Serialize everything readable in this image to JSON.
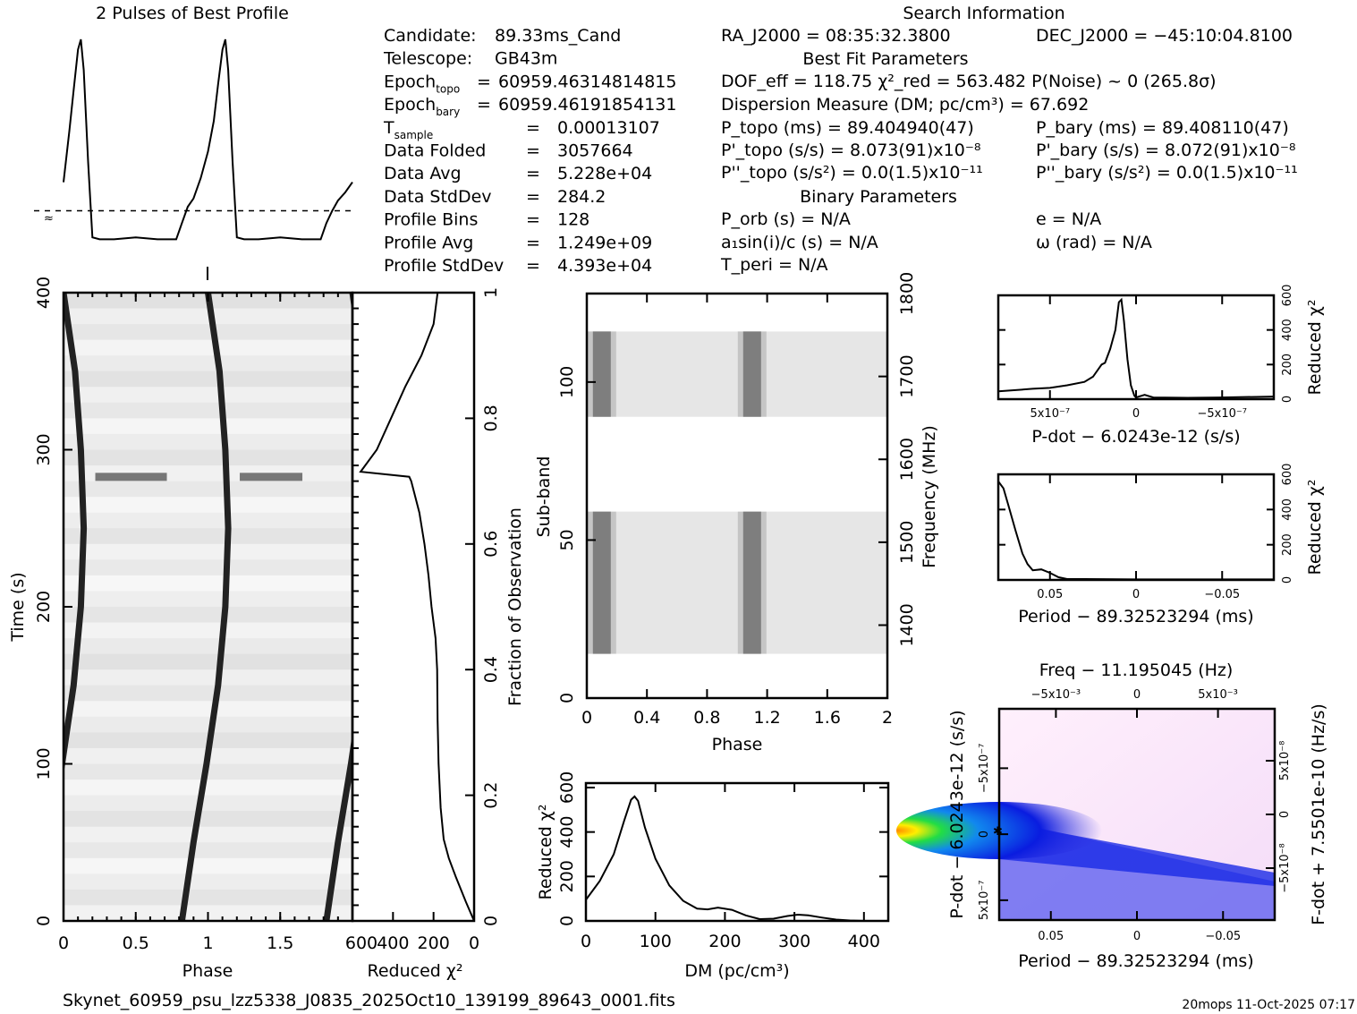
{
  "header": {
    "profile_title": "2 Pulses of Best Profile",
    "search_title": "Search Information",
    "best_fit_title": "Best Fit Parameters",
    "binary_title": "Binary Parameters"
  },
  "info_left": [
    {
      "label": "Candidate:",
      "sub": "",
      "eq": "",
      "value": "89.33ms_Cand"
    },
    {
      "label": "Telescope:",
      "sub": "",
      "eq": "",
      "value": "GB43m"
    },
    {
      "label": "Epoch",
      "sub": "topo",
      "eq": "=",
      "value": "60959.46314814815"
    },
    {
      "label": "Epoch",
      "sub": "bary",
      "eq": "=",
      "value": "60959.46191854131"
    },
    {
      "label": "T",
      "sub": "sample",
      "eq": "=",
      "value": "0.00013107"
    },
    {
      "label": "Data Folded",
      "sub": "",
      "eq": "=",
      "value": "3057664"
    },
    {
      "label": "Data Avg",
      "sub": "",
      "eq": "=",
      "value": "5.228e+04"
    },
    {
      "label": "Data StdDev",
      "sub": "",
      "eq": "=",
      "value": "284.2"
    },
    {
      "label": "Profile Bins",
      "sub": "",
      "eq": "=",
      "value": "128"
    },
    {
      "label": "Profile Avg",
      "sub": "",
      "eq": "=",
      "value": "1.249e+09"
    },
    {
      "label": "Profile StdDev",
      "sub": "",
      "eq": "=",
      "value": "4.393e+04"
    }
  ],
  "search": {
    "ra": "RA_J2000 = 08:35:32.3800",
    "dec": "DEC_J2000 = −45:10:04.8100",
    "dof": "DOF_eff = 118.75  χ²_red = 563.482  P(Noise) ~ 0   (265.8σ)",
    "dm": "Dispersion Measure (DM; pc/cm³) = 67.692",
    "p_topo": "P_topo (ms) =  89.404940(47)",
    "p_bary": "P_bary (ms) =  89.408110(47)",
    "pd_topo": "P'_topo (s/s) =  8.073(91)x10⁻⁸",
    "pd_bary": "P'_bary (s/s) =  8.072(91)x10⁻⁸",
    "pdd_topo": "P''_topo (s/s²) = 0.0(1.5)x10⁻¹¹",
    "pdd_bary": "P''_bary (s/s²) = 0.0(1.5)x10⁻¹¹",
    "p_orb": "P_orb (s) = N/A",
    "ecc": "e = N/A",
    "a1sini": "a₁sin(i)/c (s) = N/A",
    "omega": "ω (rad) = N/A",
    "t_peri": "T_peri = N/A"
  },
  "footer": {
    "filename": "Skynet_60959_psu_lzz5338_J0835_2025Oct10_139199_89643_0001.fits",
    "stamp": "20mops 11-Oct-2025 07:17"
  },
  "chart_data": [
    {
      "id": "profile",
      "type": "line",
      "title": "2 Pulses of Best Profile",
      "xlabel": "",
      "ylabel": "",
      "x_range": [
        0,
        2
      ],
      "note": "two pulses; peak near phase 0.12 and 1.12; baseline from ~0.2 to ~0.8; dashed line marks mean level",
      "x": [
        0.0,
        0.04,
        0.07,
        0.1,
        0.12,
        0.14,
        0.17,
        0.2,
        0.25,
        0.35,
        0.5,
        0.65,
        0.78,
        0.82,
        0.86,
        0.9,
        0.95,
        1.0,
        1.04,
        1.07,
        1.1,
        1.12,
        1.14,
        1.17,
        1.2,
        1.25,
        1.35,
        1.5,
        1.65,
        1.78,
        1.82,
        1.86,
        1.9,
        1.95,
        2.0
      ],
      "y": [
        0.3,
        0.55,
        0.75,
        0.95,
        1.0,
        0.85,
        0.4,
        0.03,
        0.02,
        0.02,
        0.03,
        0.02,
        0.02,
        0.1,
        0.18,
        0.22,
        0.32,
        0.45,
        0.6,
        0.78,
        0.95,
        1.0,
        0.85,
        0.4,
        0.03,
        0.02,
        0.02,
        0.03,
        0.02,
        0.02,
        0.1,
        0.16,
        0.21,
        0.25,
        0.3
      ],
      "mean_level": 0.16
    },
    {
      "id": "time-phase",
      "type": "heatmap",
      "xlabel": "Phase",
      "ylabel": "Time (s)",
      "x_range": [
        0,
        2
      ],
      "y_range": [
        0,
        400
      ],
      "x_ticks": [
        "0",
        "0.5",
        "1",
        "1.5"
      ],
      "y_ticks": [
        "0",
        "100",
        "200",
        "300",
        "400"
      ],
      "pulse_track_phase_at_time": [
        [
          0,
          0.82
        ],
        [
          50,
          0.9
        ],
        [
          100,
          0.99
        ],
        [
          150,
          1.07
        ],
        [
          200,
          1.12
        ],
        [
          250,
          1.14
        ],
        [
          300,
          1.12
        ],
        [
          350,
          1.08
        ],
        [
          400,
          1.0
        ]
      ],
      "rfi_row_time": 283
    },
    {
      "id": "time-chi2",
      "type": "line",
      "xlabel": "Reduced χ²",
      "ylabel": "Fraction of Observation",
      "x_range": [
        600,
        0
      ],
      "y_range": [
        0,
        1
      ],
      "x_ticks": [
        "600",
        "400",
        "200",
        "0"
      ],
      "y_ticks": [
        "0",
        "0.2",
        "0.4",
        "0.6",
        "0.8",
        "1"
      ],
      "frac": [
        0.0,
        0.03,
        0.07,
        0.1,
        0.13,
        0.18,
        0.25,
        0.32,
        0.4,
        0.45,
        0.5,
        0.55,
        0.6,
        0.65,
        0.7,
        0.707,
        0.715,
        0.75,
        0.8,
        0.85,
        0.9,
        0.95,
        1.0
      ],
      "chi2": [
        0,
        40,
        90,
        125,
        150,
        165,
        175,
        180,
        182,
        190,
        210,
        225,
        245,
        270,
        310,
        320,
        560,
        480,
        410,
        340,
        260,
        200,
        180
      ]
    },
    {
      "id": "subband-phase",
      "type": "heatmap",
      "xlabel": "Phase",
      "ylabel": "Sub-band",
      "y2label": "Frequency (MHz)",
      "x_range": [
        0,
        2
      ],
      "y_range": [
        0,
        128
      ],
      "y2_range": [
        1300,
        1800
      ],
      "x_ticks": [
        "0",
        "0.4",
        "0.8",
        "1.2",
        "1.6",
        "2"
      ],
      "y_ticks": [
        "0",
        "50",
        "100"
      ],
      "y2_ticks": [
        "1400",
        "1500",
        "1600",
        "1700",
        "1800"
      ],
      "filled_subbands": [
        [
          14,
          59
        ],
        [
          89,
          116
        ]
      ],
      "pulse_phase": 0.1
    },
    {
      "id": "dm-chi2",
      "type": "line",
      "xlabel": "DM (pc/cm³)",
      "ylabel": "Reduced χ²",
      "x_range": [
        0,
        435
      ],
      "y_range": [
        0,
        620
      ],
      "x_ticks": [
        "0",
        "100",
        "200",
        "300",
        "400"
      ],
      "y_ticks": [
        "0",
        "200",
        "400",
        "600"
      ],
      "x": [
        0,
        20,
        40,
        55,
        65,
        70,
        75,
        85,
        100,
        120,
        140,
        160,
        175,
        190,
        210,
        230,
        250,
        270,
        290,
        305,
        320,
        340,
        360,
        380,
        400,
        435
      ],
      "y": [
        95,
        180,
        300,
        450,
        545,
        560,
        540,
        420,
        280,
        160,
        90,
        55,
        52,
        60,
        50,
        25,
        8,
        10,
        22,
        28,
        25,
        15,
        6,
        2,
        0,
        0
      ]
    },
    {
      "id": "pdot-chi2",
      "type": "line",
      "xlabel": "P-dot − 6.0243e-12 (s/s)",
      "ylabel": "Reduced χ²",
      "x_range": [
        8e-07,
        -8e-07
      ],
      "y_range": [
        0,
        600
      ],
      "x_ticks": [
        "5x10⁻⁷",
        "0",
        "−5x10⁻⁷"
      ],
      "y_ticks": [
        "0",
        "200",
        "400",
        "600"
      ],
      "x": [
        8e-07,
        6e-07,
        5e-07,
        4e-07,
        3e-07,
        2.5e-07,
        2e-07,
        1.8e-07,
        1.5e-07,
        1.2e-07,
        1e-07,
        8.5e-08,
        7e-08,
        5e-08,
        3e-08,
        1e-08,
        0,
        -5e-08,
        -1e-07,
        -3e-07,
        -5e-07,
        -8e-07
      ],
      "y": [
        45,
        60,
        65,
        80,
        100,
        130,
        200,
        210,
        290,
        400,
        560,
        575,
        450,
        230,
        80,
        20,
        10,
        25,
        10,
        8,
        10,
        15
      ]
    },
    {
      "id": "period-chi2",
      "type": "line",
      "xlabel": "Period − 89.32523294 (ms)",
      "ylabel": "Reduced χ²",
      "x_range": [
        0.08,
        -0.08
      ],
      "y_range": [
        0,
        600
      ],
      "x_ticks": [
        "0.05",
        "0",
        "−0.05"
      ],
      "y_ticks": [
        "0",
        "200",
        "400",
        "600"
      ],
      "x": [
        0.08,
        0.077,
        0.074,
        0.07,
        0.066,
        0.063,
        0.06,
        0.055,
        0.05,
        0.045,
        0.04,
        0.03,
        0.0,
        -0.05,
        -0.08
      ],
      "y": [
        560,
        520,
        420,
        280,
        150,
        90,
        55,
        60,
        40,
        15,
        5,
        5,
        3,
        3,
        3
      ]
    },
    {
      "id": "p-pdot",
      "type": "heatmap",
      "title": "Freq − 11.195045 (Hz)",
      "xlabel": "Period − 89.32523294 (ms)",
      "ylabel": "P-dot − 6.0243e-12 (s/s)",
      "y2label": "F-dot + 7.5501e-10 (Hz/s)",
      "x_range": [
        0.08,
        -0.08
      ],
      "y_range": [
        -8e-07,
        8e-07
      ],
      "x_ticks": [
        "0.05",
        "0",
        "−0.05"
      ],
      "x2_ticks": [
        "−5x10⁻³",
        "0",
        "5x10⁻³"
      ],
      "y_ticks": [
        "−5x10⁻⁷",
        "0",
        "5x10⁻⁷"
      ],
      "y2_ticks": [
        "5x10⁻⁸",
        "0",
        "−5x10⁻⁸"
      ],
      "peak": [
        0.08,
        1e-07
      ],
      "colors": {
        "high": "#ffa500",
        "mid": "#22cc22",
        "low": "#0000dd",
        "bg": "#fce8fc"
      }
    }
  ]
}
